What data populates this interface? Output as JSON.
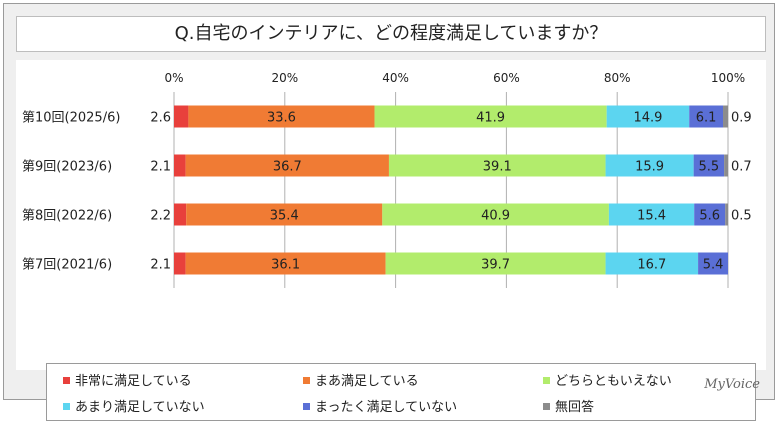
{
  "chart_data": {
    "type": "bar",
    "orientation": "horizontal-stacked-100",
    "title": "Q.自宅のインテリアに、どの程度満足していますか？",
    "xlim": [
      0,
      100
    ],
    "xtick_labels": [
      "0%",
      "20%",
      "40%",
      "60%",
      "80%",
      "100%"
    ],
    "categories": [
      "第10回(2025/6)",
      "第9回(2023/6)",
      "第8回(2022/6)",
      "第7回(2021/6)"
    ],
    "series": [
      {
        "name": "非常に満足している",
        "color": "#e8403c",
        "values": [
          2.6,
          2.1,
          2.2,
          2.1
        ],
        "labels": [
          "2.6",
          "2.1",
          "2.2",
          "2.1"
        ],
        "label_position": "outside-left"
      },
      {
        "name": "まあ満足している",
        "color": "#f07b34",
        "values": [
          33.6,
          36.7,
          35.4,
          36.1
        ],
        "labels": [
          "33.6",
          "36.7",
          "35.4",
          "36.1"
        ],
        "label_position": "inside"
      },
      {
        "name": "どちらともいえない",
        "color": "#b2ec6c",
        "values": [
          41.9,
          39.1,
          40.9,
          39.7
        ],
        "labels": [
          "41.9",
          "39.1",
          "40.9",
          "39.7"
        ],
        "label_position": "inside"
      },
      {
        "name": "あまり満足していない",
        "color": "#5cd5f0",
        "values": [
          14.9,
          15.9,
          15.4,
          16.7
        ],
        "labels": [
          "14.9",
          "15.9",
          "15.4",
          "16.7"
        ],
        "label_position": "inside"
      },
      {
        "name": "まったく満足していない",
        "color": "#5a6fd6",
        "values": [
          6.1,
          5.5,
          5.6,
          5.4
        ],
        "labels": [
          "6.1",
          "5.5",
          "5.6",
          "5.4"
        ],
        "label_position": "inside"
      },
      {
        "name": "無回答",
        "color": "#8c8c8c",
        "values": [
          0.9,
          0.7,
          0.5,
          0.0
        ],
        "labels": [
          "0.9",
          "0.7",
          "0.5",
          ""
        ],
        "label_position": "outside-right"
      }
    ],
    "legend_position": "bottom",
    "grid": true
  },
  "brand": "MyVoice"
}
